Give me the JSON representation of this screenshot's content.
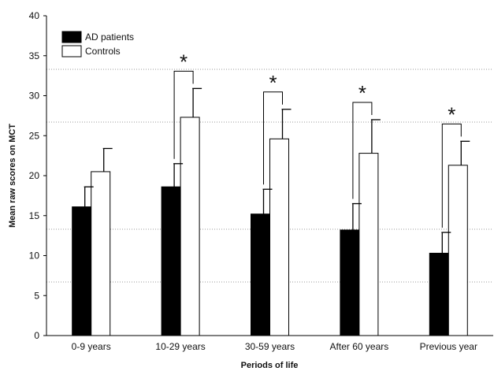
{
  "chart_data": {
    "type": "bar",
    "title": "",
    "xlabel": "Periods of life",
    "ylabel": "Mean raw scores on MCT",
    "categories": [
      "0-9 years",
      "10-29 years",
      "30-59 years",
      "After 60 years",
      "Previous year"
    ],
    "series": [
      {
        "name": "AD patients",
        "color": "#000000",
        "values": [
          16.1,
          18.6,
          15.2,
          13.2,
          10.3
        ],
        "error": [
          2.5,
          2.9,
          3.1,
          3.3,
          2.6
        ]
      },
      {
        "name": "Controls",
        "color": "#ffffff",
        "values": [
          20.5,
          27.3,
          24.6,
          22.8,
          21.3
        ],
        "error": [
          2.9,
          3.6,
          3.7,
          4.2,
          3.0
        ]
      }
    ],
    "ylim": [
      0,
      40
    ],
    "yticks": [
      0,
      5,
      10,
      15,
      20,
      25,
      30,
      35,
      40
    ],
    "grid": "dotted horizontal reference lines",
    "reference_lines": [
      6.7,
      13.3,
      26.7,
      33.3
    ],
    "legend": "top-left",
    "significance": {
      "marker": "*",
      "categories": [
        "10-29 years",
        "30-59 years",
        "After 60 years",
        "Previous year"
      ]
    }
  }
}
